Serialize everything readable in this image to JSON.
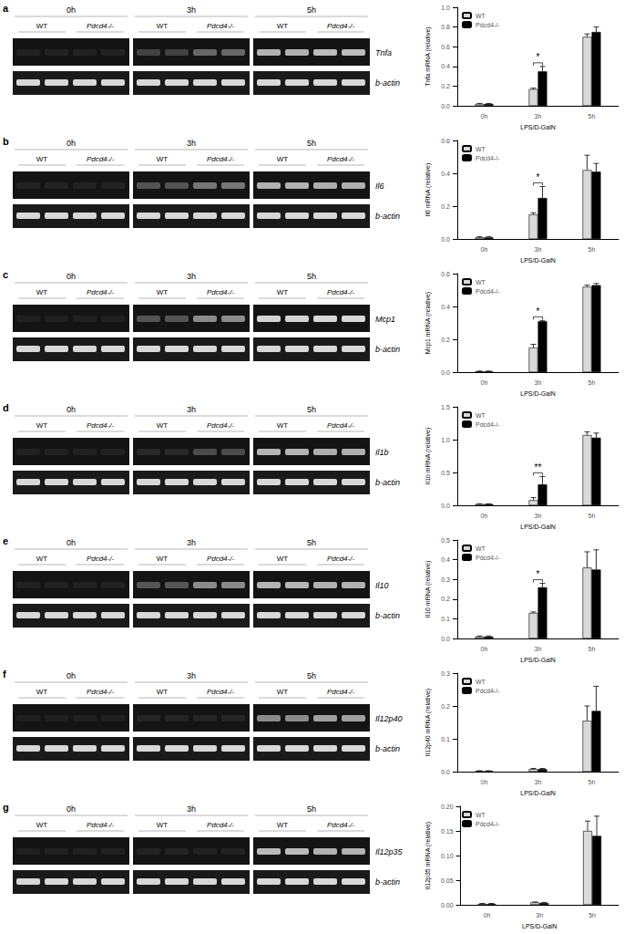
{
  "chart_data": [
    {
      "type": "bar",
      "panel": "a",
      "gel": {
        "times": [
          "0h",
          "3h",
          "5h"
        ],
        "groups": [
          "WT",
          "Pdcd4-/-"
        ],
        "gene": "Tnfa",
        "control": "b-actin"
      },
      "categories": [
        "0h",
        "3h",
        "5h"
      ],
      "x_label": "LPS/D-GalN",
      "y_label": "Tnfa mRNA (relative)",
      "series": [
        {
          "name": "WT",
          "color": "#d9d9d9",
          "values": [
            0.02,
            0.17,
            0.7
          ],
          "errors": [
            0.005,
            0.01,
            0.03
          ]
        },
        {
          "name": "Pdcd4-/-",
          "color": "#000000",
          "values": [
            0.02,
            0.35,
            0.75
          ],
          "errors": [
            0.005,
            0.05,
            0.05
          ]
        }
      ],
      "ylim": [
        0,
        1
      ],
      "yticks": [
        {
          "value": 0,
          "label": "0.0"
        },
        0.2,
        0.4,
        0.6,
        0.8,
        {
          "value": 1,
          "label": "1.0"
        }
      ],
      "annotations": [
        {
          "category": "3h",
          "text": "*"
        }
      ],
      "legend": "upper-left",
      "grid": false
    },
    {
      "type": "bar",
      "panel": "b",
      "gel": {
        "times": [
          "0h",
          "3h",
          "5h"
        ],
        "groups": [
          "WT",
          "Pdcd4-/-"
        ],
        "gene": "Il6",
        "control": "b-actin"
      },
      "categories": [
        "0h",
        "3h",
        "5h"
      ],
      "x_label": "LPS/D-GalN",
      "y_label": "Il6 mRNA (relative)",
      "series": [
        {
          "name": "WT",
          "color": "#d9d9d9",
          "values": [
            0.01,
            0.15,
            0.42
          ],
          "errors": [
            0.005,
            0.01,
            0.09
          ]
        },
        {
          "name": "Pdcd4-/-",
          "color": "#000000",
          "values": [
            0.01,
            0.25,
            0.41
          ],
          "errors": [
            0.005,
            0.07,
            0.05
          ]
        }
      ],
      "ylim": [
        0,
        0.6
      ],
      "yticks": [
        {
          "value": 0,
          "label": "0.0"
        },
        0.2,
        0.4,
        0.6
      ],
      "annotations": [
        {
          "category": "3h",
          "text": "*"
        }
      ],
      "legend": "upper-left",
      "grid": false
    },
    {
      "type": "bar",
      "panel": "c",
      "gel": {
        "times": [
          "0h",
          "3h",
          "5h"
        ],
        "groups": [
          "WT",
          "Pdcd4-/-"
        ],
        "gene": "Mcp1",
        "control": "b-actin"
      },
      "categories": [
        "0h",
        "3h",
        "5h"
      ],
      "x_label": "LPS/D-GalN",
      "y_label": "Mcp1 mRNA (relative)",
      "series": [
        {
          "name": "WT",
          "color": "#d9d9d9",
          "values": [
            0.005,
            0.15,
            0.52
          ],
          "errors": [
            0.002,
            0.02,
            0.01
          ]
        },
        {
          "name": "Pdcd4-/-",
          "color": "#000000",
          "values": [
            0.005,
            0.31,
            0.53
          ],
          "errors": [
            0.002,
            0.005,
            0.01
          ]
        }
      ],
      "ylim": [
        0,
        0.6
      ],
      "yticks": [
        {
          "value": 0,
          "label": "0.0"
        },
        0.2,
        0.4,
        0.6
      ],
      "annotations": [
        {
          "category": "3h",
          "text": "*"
        }
      ],
      "legend": "upper-left",
      "grid": false
    },
    {
      "type": "bar",
      "panel": "d",
      "gel": {
        "times": [
          "0h",
          "3h",
          "5h"
        ],
        "groups": [
          "WT",
          "Pdcd4-/-"
        ],
        "gene": "Il1b",
        "control": "b-actin"
      },
      "categories": [
        "0h",
        "3h",
        "5h"
      ],
      "x_label": "LPS/D-GalN",
      "y_label": "Il1b mRNA (relative)",
      "series": [
        {
          "name": "WT",
          "color": "#d9d9d9",
          "values": [
            0.02,
            0.08,
            1.07
          ],
          "errors": [
            0.005,
            0.04,
            0.05
          ]
        },
        {
          "name": "Pdcd4-/-",
          "color": "#000000",
          "values": [
            0.02,
            0.32,
            1.03
          ],
          "errors": [
            0.005,
            0.12,
            0.07
          ]
        }
      ],
      "ylim": [
        0,
        1.5
      ],
      "yticks": [
        {
          "value": 0,
          "label": "0.0"
        },
        0.5,
        {
          "value": 1,
          "label": "1.0"
        },
        1.5
      ],
      "annotations": [
        {
          "category": "3h",
          "text": "**"
        }
      ],
      "legend": "upper-left",
      "grid": false
    },
    {
      "type": "bar",
      "panel": "e",
      "gel": {
        "times": [
          "0h",
          "3h",
          "5h"
        ],
        "groups": [
          "WT",
          "Pdcd4-/-"
        ],
        "gene": "Il10",
        "control": "b-actin"
      },
      "categories": [
        "0h",
        "3h",
        "5h"
      ],
      "x_label": "LPS/D-GalN",
      "y_label": "Il10 mRNA (relative)",
      "series": [
        {
          "name": "WT",
          "color": "#d9d9d9",
          "values": [
            0.01,
            0.13,
            0.36
          ],
          "errors": [
            0.003,
            0.005,
            0.08
          ]
        },
        {
          "name": "Pdcd4-/-",
          "color": "#000000",
          "values": [
            0.01,
            0.26,
            0.35
          ],
          "errors": [
            0.003,
            0.02,
            0.1
          ]
        }
      ],
      "ylim": [
        0,
        0.5
      ],
      "yticks": [
        {
          "value": 0,
          "label": "0.0"
        },
        0.1,
        0.2,
        0.3,
        0.4,
        0.5
      ],
      "annotations": [
        {
          "category": "3h",
          "text": "*"
        }
      ],
      "legend": "upper-left",
      "grid": false
    },
    {
      "type": "bar",
      "panel": "f",
      "gel": {
        "times": [
          "0h",
          "3h",
          "5h"
        ],
        "groups": [
          "WT",
          "Pdcd4-/-"
        ],
        "gene": "Il12p40",
        "control": "b-actin"
      },
      "categories": [
        "0h",
        "3h",
        "5h"
      ],
      "x_label": "LPS/D-GalN",
      "y_label": "Il12p40 mRNA (relative)",
      "series": [
        {
          "name": "WT",
          "color": "#d9d9d9",
          "values": [
            0.002,
            0.008,
            0.155
          ],
          "errors": [
            0.001,
            0.002,
            0.045
          ]
        },
        {
          "name": "Pdcd4-/-",
          "color": "#000000",
          "values": [
            0.002,
            0.008,
            0.185
          ],
          "errors": [
            0.001,
            0.002,
            0.075
          ]
        }
      ],
      "ylim": [
        0,
        0.3
      ],
      "yticks": [
        {
          "value": 0,
          "label": "0.0"
        },
        0.1,
        0.2,
        0.3
      ],
      "legend": "upper-left",
      "grid": false
    },
    {
      "type": "bar",
      "panel": "g",
      "gel": {
        "times": [
          "0h",
          "3h",
          "5h"
        ],
        "groups": [
          "WT",
          "Pdcd4-/-"
        ],
        "gene": "Il12p35",
        "control": "b-actin"
      },
      "categories": [
        "0h",
        "3h",
        "5h"
      ],
      "x_label": "LPS/D-GalN",
      "y_label": "Il12p35 mRNA (relative)",
      "series": [
        {
          "name": "WT",
          "color": "#d9d9d9",
          "values": [
            0.002,
            0.005,
            0.15
          ],
          "errors": [
            0.001,
            0.001,
            0.02
          ]
        },
        {
          "name": "Pdcd4-/-",
          "color": "#000000",
          "values": [
            0.002,
            0.004,
            0.14
          ],
          "errors": [
            0.001,
            0.001,
            0.04
          ]
        }
      ],
      "ylim": [
        0,
        0.2
      ],
      "yticks": [
        {
          "value": 0,
          "label": "0.00"
        },
        0.05,
        {
          "value": 0.1,
          "label": "0.10"
        },
        0.15,
        {
          "value": 0.2,
          "label": "0.20"
        }
      ],
      "legend": "upper-left",
      "grid": false
    }
  ]
}
